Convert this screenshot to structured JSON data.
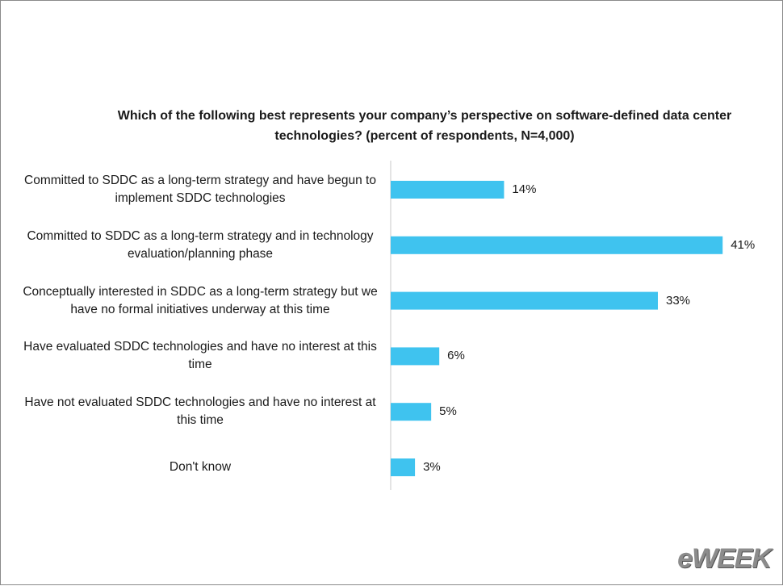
{
  "chart_data": {
    "type": "bar",
    "orientation": "horizontal",
    "title": "Which of the following best represents your company’s perspective on software-defined data center technologies? (percent of respondents, N=4,000)",
    "categories": [
      "Committed to SDDC as a long-term strategy and have begun to implement SDDC technologies",
      "Committed to SDDC as a long-term strategy and in technology evaluation/planning phase",
      "Conceptually interested in SDDC as a long-term strategy but we have no formal initiatives underway at this time",
      "Have evaluated SDDC technologies and have no interest at this time",
      "Have not evaluated SDDC technologies and have no interest at this time",
      "Don't know"
    ],
    "values": [
      14,
      41,
      33,
      6,
      5,
      3
    ],
    "value_labels": [
      "14%",
      "41%",
      "33%",
      "6%",
      "5%",
      "3%"
    ],
    "color": "#3fc3ef"
  },
  "watermark": "eWEEK"
}
